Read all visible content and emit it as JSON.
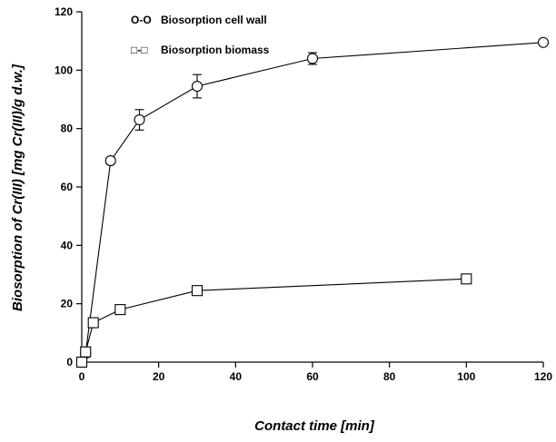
{
  "chart_data": {
    "type": "line",
    "xlabel": "Contact time [min]",
    "ylabel": "Biosorption of Cr(III) [mg Cr(III)/g d.w.]",
    "xlim": [
      0,
      120
    ],
    "ylim": [
      0,
      120
    ],
    "xticks": [
      0,
      20,
      40,
      60,
      80,
      100,
      120
    ],
    "yticks": [
      0,
      20,
      40,
      60,
      80,
      100,
      120
    ],
    "grid": false,
    "legend_position": "top-left",
    "series": [
      {
        "name": "Biosorption cell wall",
        "legend_symbol": "O-O",
        "marker": "circle",
        "x": [
          0,
          1,
          7.5,
          15,
          30,
          60,
          120
        ],
        "y": [
          0,
          3,
          69,
          83,
          94.5,
          104,
          109.5
        ],
        "err": [
          0,
          0,
          1,
          3.5,
          4,
          2,
          0.5
        ]
      },
      {
        "name": "Biosorption biomass",
        "legend_symbol": "□-□",
        "marker": "square",
        "x": [
          0,
          1,
          3,
          10,
          30,
          100
        ],
        "y": [
          0,
          3.5,
          13.5,
          18,
          24.5,
          28.5
        ],
        "err": [
          0,
          0,
          0,
          0,
          1.5,
          0
        ]
      }
    ]
  }
}
